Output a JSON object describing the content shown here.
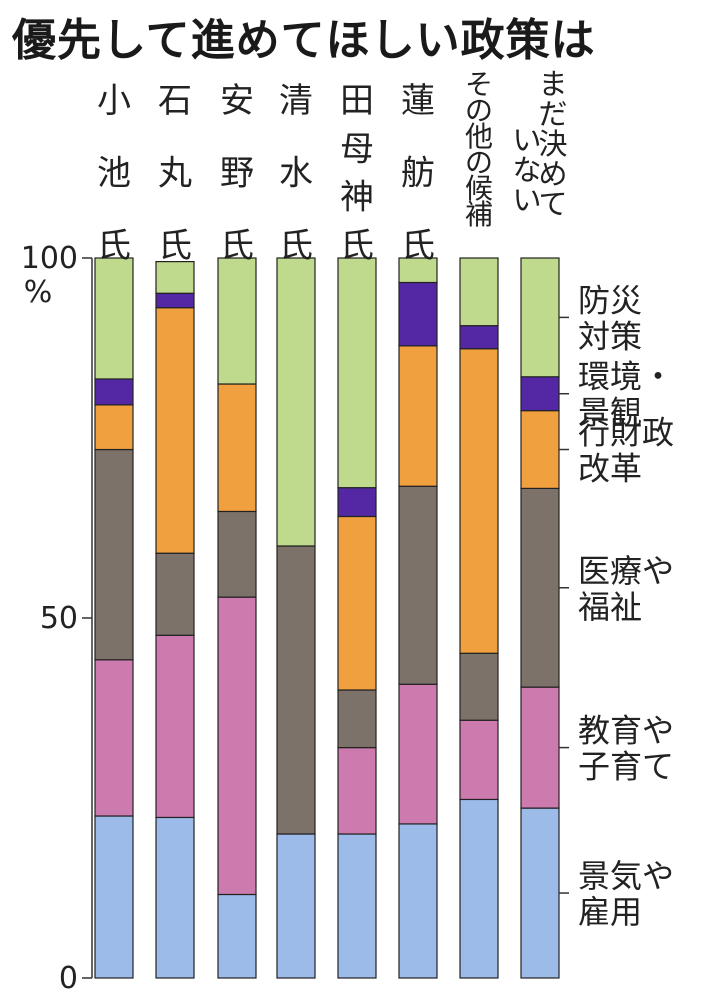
{
  "title": "優先して進めてほしい政策は",
  "chart_data": {
    "type": "bar",
    "stacked": true,
    "orientation": "vertical",
    "title": "優先して進めてほしい政策は",
    "unit": "%",
    "ylim": [
      0,
      100
    ],
    "y_ticks": [
      "100",
      "50",
      "0"
    ],
    "categories": [
      [
        "小",
        "池",
        "氏"
      ],
      [
        "石",
        "丸",
        "氏"
      ],
      [
        "安",
        "野",
        "氏"
      ],
      [
        "清",
        "水",
        "氏"
      ],
      [
        "田",
        "母",
        "神",
        "氏"
      ],
      [
        "蓮",
        "舫",
        "氏"
      ],
      [
        "その他の候補"
      ],
      [
        "まだ決めて",
        "いない"
      ]
    ],
    "series": [
      {
        "name": [
          "景気や",
          "雇用"
        ],
        "color": "#9dbbe9",
        "values": [
          22.5,
          22.3,
          11.6,
          20.0,
          20.0,
          21.4,
          24.8,
          23.6
        ]
      },
      {
        "name": [
          "教育や",
          "子育て"
        ],
        "color": "#cd7bae",
        "values": [
          21.7,
          25.3,
          41.3,
          0,
          12.0,
          19.4,
          11.0,
          16.8
        ]
      },
      {
        "name": [
          "医療や",
          "福祉"
        ],
        "color": "#7d7269",
        "values": [
          29.2,
          11.4,
          11.9,
          40.0,
          8.0,
          27.5,
          9.3,
          27.6
        ]
      },
      {
        "name": [
          "行財政",
          "改革"
        ],
        "color": "#f1a040",
        "values": [
          6.2,
          34.1,
          17.7,
          0,
          24.1,
          19.5,
          42.3,
          10.8
        ]
      },
      {
        "name": [
          "環境・",
          "景観"
        ],
        "color": "#5428a5",
        "values": [
          3.6,
          2.0,
          0,
          0,
          4.0,
          8.8,
          3.2,
          4.7
        ]
      },
      {
        "name": [
          "防災",
          "対策"
        ],
        "color": "#bfda8c",
        "values": [
          16.8,
          4.4,
          17.5,
          40.0,
          31.9,
          3.4,
          9.4,
          16.5
        ]
      }
    ]
  }
}
